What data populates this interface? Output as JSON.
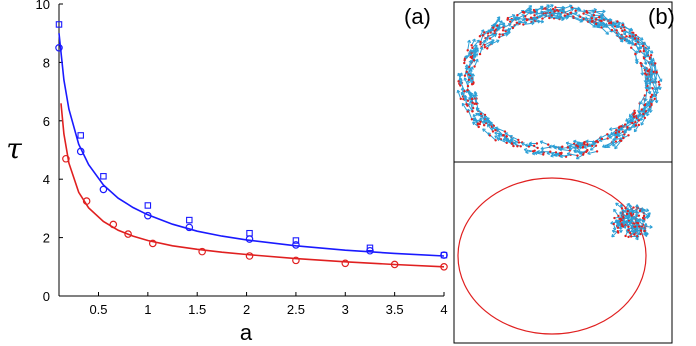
{
  "chart_data": [
    {
      "type": "scatter",
      "xlabel": "a",
      "ylabel": "τ",
      "xlim": [
        0.1,
        4.0
      ],
      "ylim": [
        0,
        10
      ],
      "xticks": [
        "0.5",
        "1",
        "1.5",
        "2",
        "2.5",
        "3",
        "3.5",
        "4"
      ],
      "yticks": [
        "0",
        "2",
        "4",
        "6",
        "8",
        "10"
      ],
      "grid": false,
      "series": [
        {
          "color": "#1a1aff",
          "marker": "square",
          "x": [
            0.1,
            0.32,
            0.55,
            1.0,
            1.42,
            2.03,
            2.5,
            3.25,
            4.0
          ],
          "y": [
            9.3,
            5.5,
            4.1,
            3.1,
            2.6,
            2.15,
            1.9,
            1.65,
            1.4
          ]
        },
        {
          "color": "#1a1aff",
          "marker": "circle",
          "x": [
            0.1,
            0.32,
            0.55,
            1.0,
            1.42,
            2.03,
            2.5,
            3.25,
            4.0
          ],
          "y": [
            8.5,
            4.95,
            3.65,
            2.75,
            2.35,
            1.95,
            1.75,
            1.55,
            1.4
          ]
        },
        {
          "color": "#1a1aff",
          "marker": "none",
          "line": "fit",
          "x": [
            0.1,
            0.15,
            0.2,
            0.3,
            0.4,
            0.55,
            0.7,
            0.85,
            1.0,
            1.25,
            1.5,
            1.75,
            2.0,
            2.5,
            3.0,
            3.5,
            4.0
          ],
          "y": [
            9.0,
            7.4,
            6.4,
            5.2,
            4.5,
            3.8,
            3.35,
            3.03,
            2.78,
            2.46,
            2.22,
            2.05,
            1.92,
            1.72,
            1.57,
            1.46,
            1.37
          ]
        },
        {
          "color": "#e02020",
          "marker": "circle",
          "x": [
            0.17,
            0.38,
            0.65,
            0.8,
            1.05,
            1.55,
            2.03,
            2.5,
            3.0,
            3.5,
            4.0
          ],
          "y": [
            4.7,
            3.25,
            2.45,
            2.12,
            1.8,
            1.52,
            1.37,
            1.22,
            1.12,
            1.08,
            1.0
          ]
        },
        {
          "color": "#e02020",
          "marker": "none",
          "line": "fit",
          "x": [
            0.12,
            0.15,
            0.2,
            0.3,
            0.4,
            0.55,
            0.7,
            0.85,
            1.0,
            1.25,
            1.5,
            1.75,
            2.0,
            2.5,
            3.0,
            3.5,
            4.0
          ],
          "y": [
            6.6,
            5.55,
            4.55,
            3.55,
            3.02,
            2.55,
            2.25,
            2.05,
            1.9,
            1.72,
            1.6,
            1.5,
            1.42,
            1.28,
            1.17,
            1.08,
            1.0
          ]
        }
      ]
    }
  ],
  "panels": {
    "top": {
      "label": "(b)",
      "ring_color": "#e02020",
      "arrow_color": "#2a9fd6"
    },
    "bottom": {
      "label": "(a)",
      "ring_color": "#e02020",
      "arrow_color": "#2a9fd6"
    }
  }
}
